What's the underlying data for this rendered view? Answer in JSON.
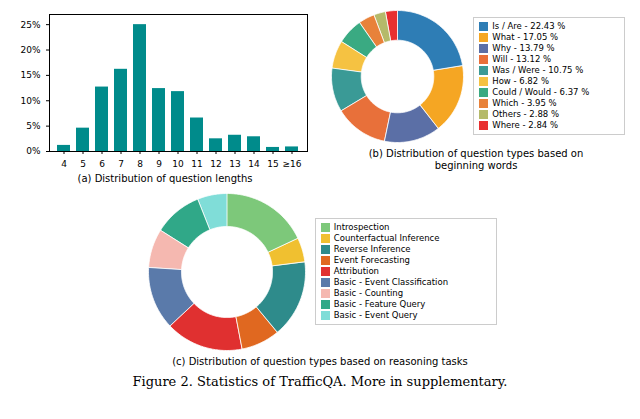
{
  "title": "Figure 2. Statistics of TrafficQA. More in supplementary.",
  "chart_data": [
    {
      "type": "bar",
      "title": "(a) Distribution of question lengths",
      "categories": [
        "4",
        "5",
        "6",
        "7",
        "8",
        "9",
        "10",
        "11",
        "12",
        "13",
        "14",
        "15",
        "≥16"
      ],
      "values": [
        1.2,
        4.6,
        12.7,
        16.2,
        25.0,
        12.4,
        11.8,
        6.6,
        2.5,
        3.2,
        2.9,
        0.8,
        0.9
      ],
      "color": "#008b8b",
      "ylim": [
        0,
        27
      ],
      "yticks": [
        {
          "value": 0,
          "label": "0%"
        },
        {
          "value": 5,
          "label": "5%"
        },
        {
          "value": 10,
          "label": "10%"
        },
        {
          "value": 15,
          "label": "15%"
        },
        {
          "value": 20,
          "label": "20%"
        },
        {
          "value": 25,
          "label": "25%"
        }
      ],
      "grid": false
    },
    {
      "type": "donut",
      "title": "(b) Distribution of question types based on\nbeginning words",
      "categories": [
        "Is / Are - 22.43 %",
        "What - 17.05 %",
        "Why - 13.79 %",
        "Will - 13.12 %",
        "Was / Were - 10.75 %",
        "How - 6.82 %",
        "Could / Would - 6.37 %",
        "Which - 3.95 %",
        "Others - 2.88 %",
        "Where - 2.84 %"
      ],
      "values": [
        22.43,
        17.05,
        13.79,
        13.12,
        10.75,
        6.82,
        6.37,
        3.95,
        2.88,
        2.84
      ],
      "colors": [
        "#2e7db5",
        "#f5a623",
        "#5b6fa6",
        "#e8703a",
        "#3a9a96",
        "#f5c242",
        "#3aaa82",
        "#e8823a",
        "#b5ba6a",
        "#e83030"
      ],
      "legend": "right"
    },
    {
      "type": "donut",
      "title": "(c) Distribution of question types based on reasoning tasks",
      "categories": [
        "Introspection",
        "Counterfactual Inference",
        "Reverse Inference",
        "Event Forecasting",
        "Attribution",
        "Basic - Event Classification",
        "Basic - Counting",
        "Basic - Feature Query",
        "Basic - Event Query"
      ],
      "values": [
        18.0,
        5.0,
        16.0,
        8.0,
        16.0,
        13.0,
        8.0,
        10.0,
        6.0
      ],
      "colors": [
        "#7dc87a",
        "#f0c030",
        "#2e8b8b",
        "#e06820",
        "#e03030",
        "#5a7aaa",
        "#f5b8b0",
        "#30a888",
        "#80ddd8"
      ],
      "legend": "right"
    }
  ]
}
